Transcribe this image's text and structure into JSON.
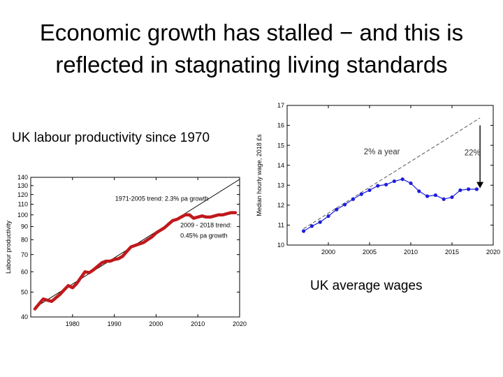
{
  "slide": {
    "title_line1": "Economic growth has stalled − and this is",
    "title_line2": "reflected in stagnating living standards",
    "productivity_caption": "UK labour productivity since 1970",
    "wages_caption": "UK average wages"
  },
  "chart_data": [
    {
      "type": "line",
      "ylabel": "Labour productivity",
      "yscale": "log",
      "xlim": [
        1970,
        2020
      ],
      "ylim": [
        40,
        140
      ],
      "x_ticks": [
        1980,
        1990,
        2000,
        2010,
        2020
      ],
      "y_ticks": [
        40,
        50,
        60,
        70,
        80,
        90,
        100,
        110,
        120,
        130,
        140
      ],
      "grid": false,
      "series": [
        {
          "x": [
            1971,
            1972,
            1973,
            1974,
            1975,
            1976,
            1977,
            1978,
            1979,
            1980,
            1981,
            1982,
            1983,
            1984,
            1985,
            1986,
            1987,
            1988,
            1989,
            1990,
            1991,
            1992,
            1993,
            1994,
            1995,
            1996,
            1997,
            1998,
            1999,
            2000,
            2001,
            2002,
            2003,
            2004,
            2005,
            2006,
            2007,
            2008,
            2009,
            2010,
            2011,
            2012,
            2013,
            2014,
            2015,
            2016,
            2017,
            2018,
            2019
          ],
          "y": [
            43,
            45,
            47,
            46.5,
            46,
            47.5,
            49,
            51,
            53,
            52,
            54,
            57,
            60,
            59.5,
            61,
            63,
            65,
            66,
            66,
            67,
            67.5,
            69,
            72,
            75,
            76,
            77,
            78,
            80,
            82,
            85,
            87,
            89,
            92,
            95,
            96,
            98,
            100,
            100,
            97,
            98,
            99,
            98,
            98,
            99,
            100,
            100,
            101,
            102,
            102
          ],
          "color": "#c0191c"
        }
      ],
      "trends": [
        {
          "x": [
            1971,
            2020
          ],
          "y": [
            43.5,
            137.5
          ],
          "color": "#000000"
        }
      ],
      "annotations": [
        {
          "text": "1971-2005 trend: 2.3% pa growth",
          "x": 1990.2,
          "y": 113.5
        },
        {
          "text": "2009 - 2018 trend:",
          "x": 2005.8,
          "y": 89.5
        },
        {
          "text": "0.45% pa growth",
          "x": 2005.8,
          "y": 81.5
        }
      ]
    },
    {
      "type": "line",
      "ylabel": "Median hourly wage, 2018 £s",
      "xlim": [
        1995,
        2020
      ],
      "ylim": [
        10,
        17
      ],
      "x_ticks": [
        2000,
        2005,
        2010,
        2015,
        2020
      ],
      "y_ticks": [
        10,
        11,
        12,
        13,
        14,
        15,
        16,
        17
      ],
      "grid": false,
      "series": [
        {
          "x": [
            1997,
            1998,
            1999,
            2000,
            2001,
            2002,
            2003,
            2004,
            2005,
            2006,
            2007,
            2008,
            2009,
            2010,
            2011,
            2012,
            2013,
            2014,
            2015,
            2016,
            2017,
            2018
          ],
          "y": [
            10.7,
            10.95,
            11.15,
            11.45,
            11.78,
            12.03,
            12.3,
            12.55,
            12.75,
            12.97,
            13.03,
            13.2,
            13.3,
            13.1,
            12.7,
            12.45,
            12.5,
            12.3,
            12.4,
            12.75,
            12.8,
            12.8
          ],
          "color": "#1d1ddb"
        }
      ],
      "trends": [
        {
          "x": [
            1997,
            2018.4
          ],
          "y": [
            10.82,
            16.37
          ],
          "color": "#555555"
        }
      ],
      "annotations": [
        {
          "text": "2% a year",
          "x": 2004.3,
          "y": 14.55
        },
        {
          "text": "22%",
          "x": 2016.5,
          "y": 14.5
        }
      ],
      "arrow": {
        "x": 2018.4,
        "from": 16.0,
        "to": 12.85
      }
    }
  ]
}
